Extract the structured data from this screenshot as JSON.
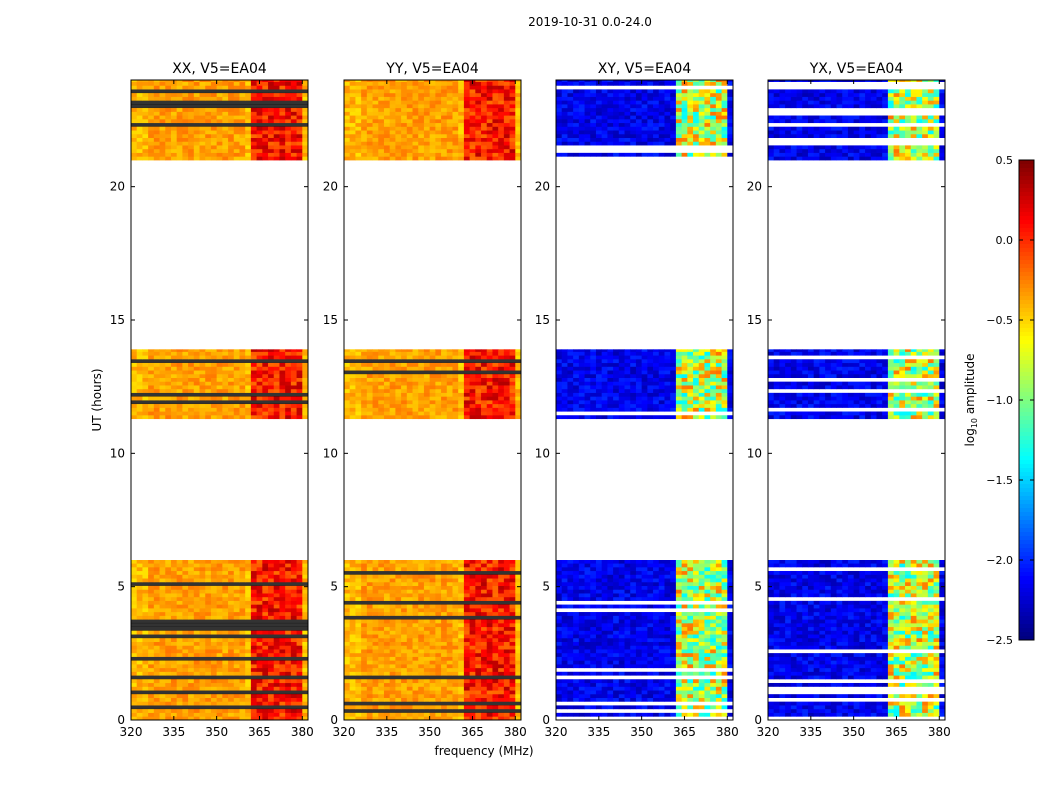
{
  "chart_data": {
    "type": "heatmap",
    "title": "2019-10-31 0.0-24.0",
    "xlabel": "frequency (MHz)",
    "ylabel": "UT (hours)",
    "xlim": [
      320,
      382
    ],
    "ylim": [
      0,
      24
    ],
    "x_ticks": [
      "320",
      "335",
      "350",
      "365",
      "380"
    ],
    "x_tick_values": [
      320,
      335,
      350,
      365,
      380
    ],
    "y_ticks": [
      "0",
      "5",
      "10",
      "15",
      "20"
    ],
    "y_tick_values": [
      0,
      5,
      10,
      15,
      20
    ],
    "panels": [
      {
        "title": "XX, V5=EA04",
        "kind": "parallel"
      },
      {
        "title": "YY, V5=EA04",
        "kind": "parallel"
      },
      {
        "title": "XY, V5=EA04",
        "kind": "cross"
      },
      {
        "title": "YX, V5=EA04",
        "kind": "cross"
      }
    ],
    "data_time_ranges_hours": [
      [
        0.0,
        6.0
      ],
      [
        11.3,
        13.9
      ],
      [
        21.0,
        24.0
      ]
    ],
    "rfi_band_mhz": [
      361,
      380
    ],
    "colorbar": {
      "label_prefix": "log",
      "label_sub": "10",
      "label_suffix": " amplitude",
      "range": [
        -2.5,
        0.5
      ],
      "ticks": [
        "0.5",
        "0.0",
        "−0.5",
        "−1.0",
        "−1.5",
        "−2.0",
        "−2.5"
      ],
      "tick_values": [
        0.5,
        0.0,
        -0.5,
        -1.0,
        -1.5,
        -2.0,
        -2.5
      ]
    }
  }
}
